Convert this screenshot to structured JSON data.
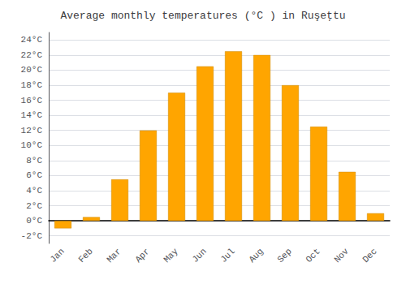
{
  "chart_data": {
    "type": "bar",
    "title": "Average monthly temperatures (°C ) in Ruşeţtu",
    "categories": [
      "Jan",
      "Feb",
      "Mar",
      "Apr",
      "May",
      "Jun",
      "Jul",
      "Aug",
      "Sep",
      "Oct",
      "Nov",
      "Dec"
    ],
    "values": [
      -1.0,
      0.5,
      5.5,
      12.0,
      17.0,
      20.5,
      22.5,
      22.0,
      18.0,
      12.5,
      6.5,
      1.0
    ],
    "color": "#FFA500",
    "ylim": [
      -3,
      25
    ],
    "yticks": [
      {
        "value": -2,
        "label": "-2°C"
      },
      {
        "value": 0,
        "label": "0°C"
      },
      {
        "value": 2,
        "label": "2°C"
      },
      {
        "value": 4,
        "label": "4°C"
      },
      {
        "value": 6,
        "label": "6°C"
      },
      {
        "value": 8,
        "label": "8°C"
      },
      {
        "value": 10,
        "label": "10°C"
      },
      {
        "value": 12,
        "label": "12°C"
      },
      {
        "value": 14,
        "label": "14°C"
      },
      {
        "value": 16,
        "label": "16°C"
      },
      {
        "value": 18,
        "label": "18°C"
      },
      {
        "value": 20,
        "label": "20°C"
      },
      {
        "value": 22,
        "label": "22°C"
      },
      {
        "value": 24,
        "label": "24°C"
      }
    ],
    "grid": true
  }
}
